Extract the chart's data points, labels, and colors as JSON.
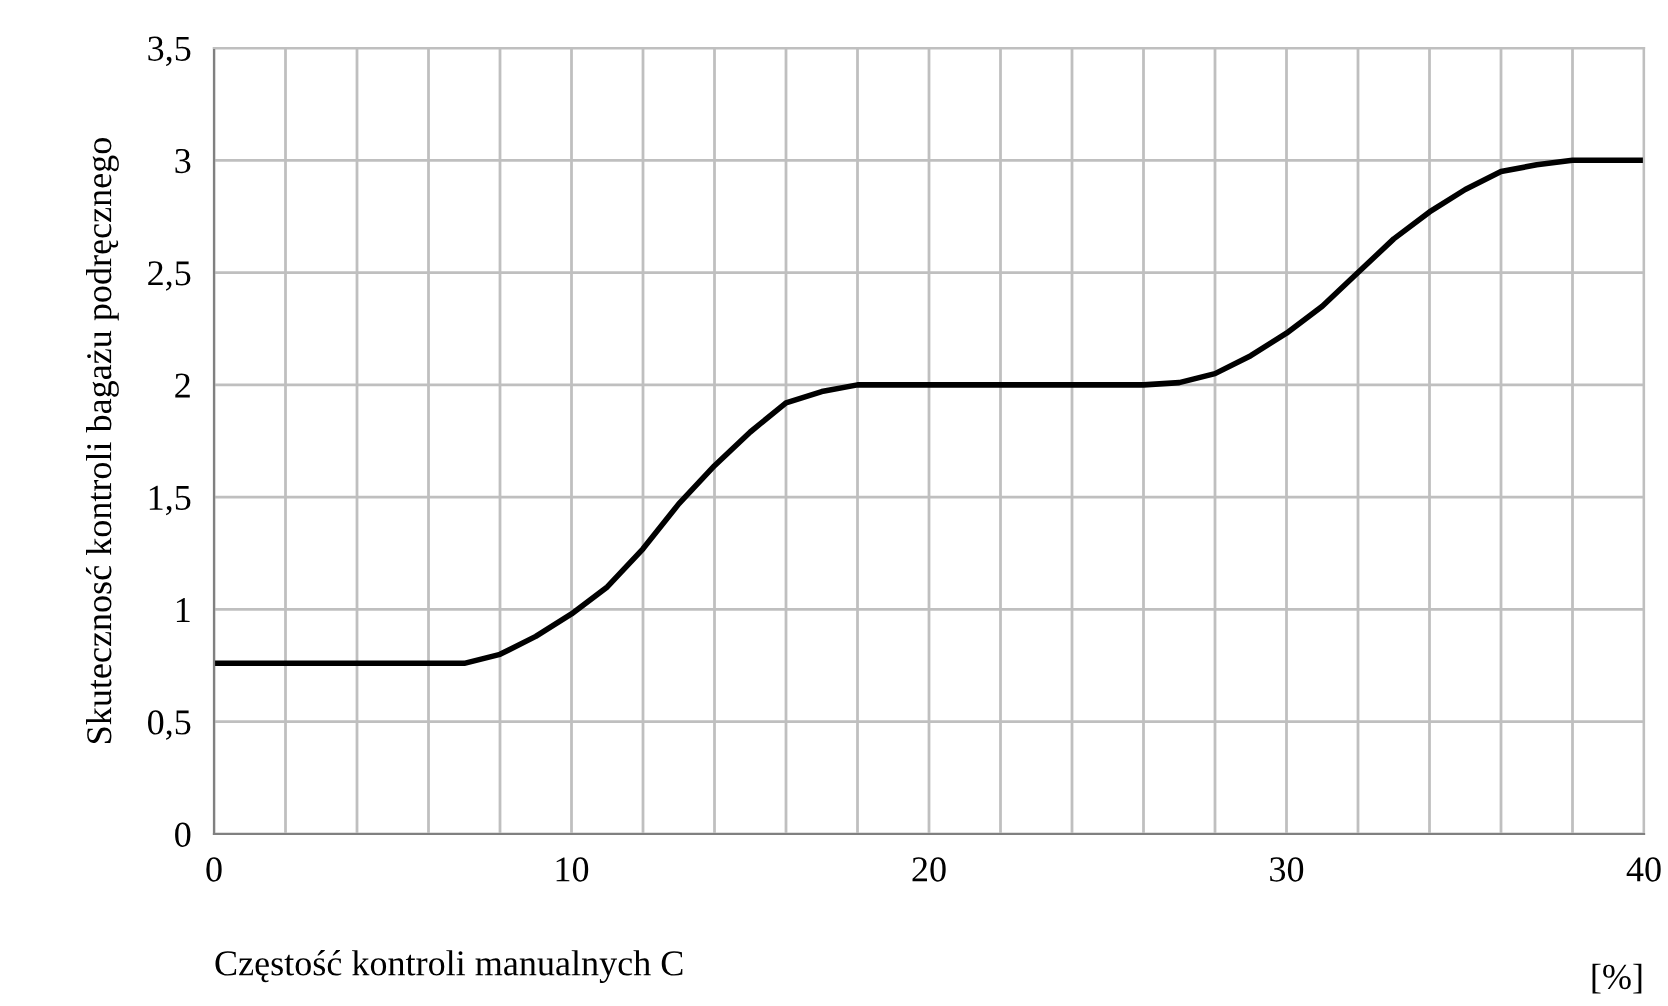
{
  "chart_data": {
    "type": "line",
    "xlabel": "Częstość kontroli manualnych C",
    "ylabel": "Skutecznosć kontroli bagażu podręcznego",
    "annotations": [
      "[%]"
    ],
    "x": [
      0,
      1,
      2,
      3,
      4,
      5,
      6,
      7,
      8,
      9,
      10,
      11,
      12,
      13,
      14,
      15,
      16,
      17,
      18,
      19,
      20,
      21,
      22,
      23,
      24,
      25,
      26,
      27,
      28,
      29,
      30,
      31,
      32,
      33,
      34,
      35,
      36,
      37,
      38,
      39,
      40
    ],
    "series": [
      {
        "color": "#000000",
        "values": [
          0.76,
          0.76,
          0.76,
          0.76,
          0.76,
          0.76,
          0.76,
          0.76,
          0.8,
          0.88,
          0.98,
          1.1,
          1.27,
          1.47,
          1.64,
          1.79,
          1.92,
          1.97,
          2.0,
          2.0,
          2.0,
          2.0,
          2.0,
          2.0,
          2.0,
          2.0,
          2.0,
          2.01,
          2.05,
          2.13,
          2.23,
          2.35,
          2.5,
          2.65,
          2.77,
          2.87,
          2.95,
          2.98,
          3.0,
          3.0,
          3.0
        ]
      }
    ],
    "xlim": [
      0,
      40
    ],
    "xticks": [
      0,
      {
        "value": 2,
        "label": null
      },
      {
        "value": 4,
        "label": null
      },
      {
        "value": 6,
        "label": null
      },
      {
        "value": 8,
        "label": null
      },
      10,
      {
        "value": 12,
        "label": null
      },
      {
        "value": 14,
        "label": null
      },
      {
        "value": 16,
        "label": null
      },
      {
        "value": 18,
        "label": null
      },
      20,
      {
        "value": 22,
        "label": null
      },
      {
        "value": 24,
        "label": null
      },
      {
        "value": 26,
        "label": null
      },
      {
        "value": 28,
        "label": null
      },
      30,
      {
        "value": 32,
        "label": null
      },
      {
        "value": 34,
        "label": null
      },
      {
        "value": 36,
        "label": null
      },
      {
        "value": 38,
        "label": null
      },
      40
    ],
    "ylim": [
      0,
      3.5
    ],
    "yticks": [
      0,
      {
        "value": 0.5,
        "label": "0,5"
      },
      1,
      {
        "value": 1.5,
        "label": "1,5"
      },
      2,
      {
        "value": 2.5,
        "label": "2,5"
      },
      3,
      {
        "value": 3.5,
        "label": "3,5"
      }
    ],
    "grid": true,
    "marker": "none",
    "line_style": "solid"
  }
}
